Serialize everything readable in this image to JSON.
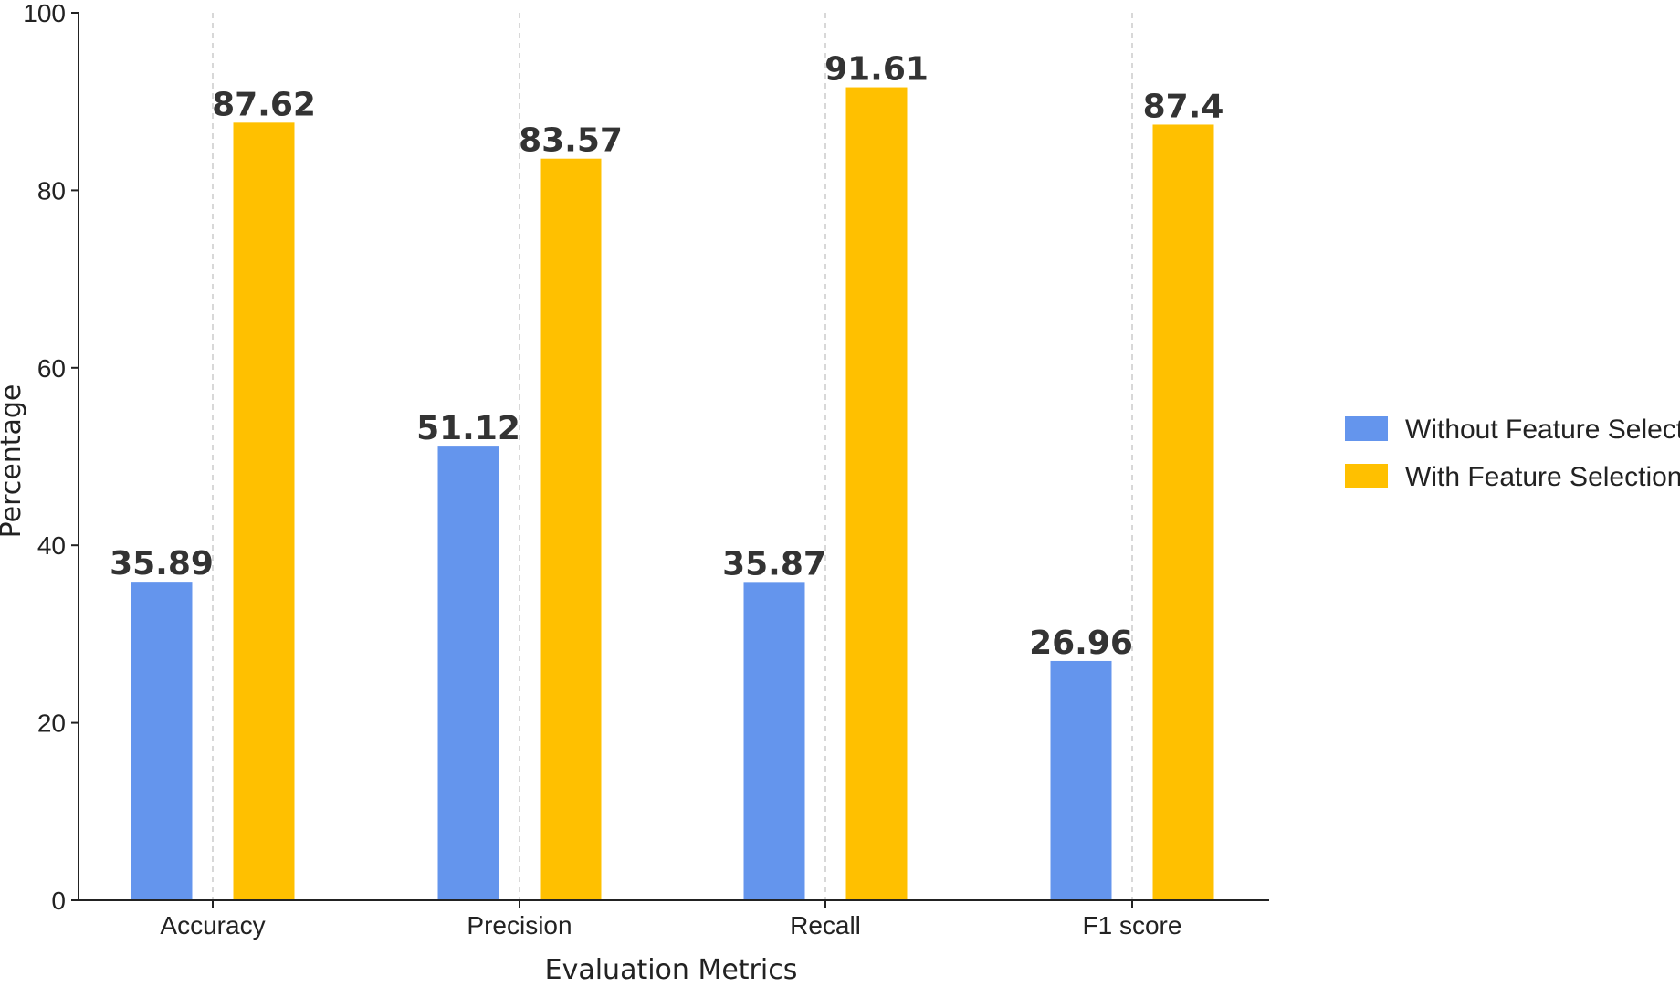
{
  "chart_data": {
    "type": "bar",
    "categories": [
      "Accuracy",
      "Precision",
      "Recall",
      "F1 score"
    ],
    "series": [
      {
        "name": "Without Feature Selection",
        "values": [
          35.89,
          51.12,
          35.87,
          26.96
        ],
        "color": "#6495ED"
      },
      {
        "name": "With Feature Selection",
        "values": [
          87.62,
          83.57,
          91.61,
          87.4
        ],
        "color": "#FFC000"
      }
    ],
    "value_labels": [
      [
        "35.89",
        "51.12",
        "35.87",
        "26.96"
      ],
      [
        "87.62",
        "83.57",
        "91.61",
        "87.4"
      ]
    ],
    "title": "",
    "xlabel": "Evaluation Metrics",
    "ylabel": "Percentage",
    "ylim": [
      0,
      100
    ],
    "yticks": [
      0,
      20,
      40,
      60,
      80,
      100
    ],
    "ytick_labels": [
      "0",
      "20",
      "40",
      "60",
      "80",
      "100"
    ],
    "grid": "vertical dashed at categories",
    "legend_position": "right"
  }
}
